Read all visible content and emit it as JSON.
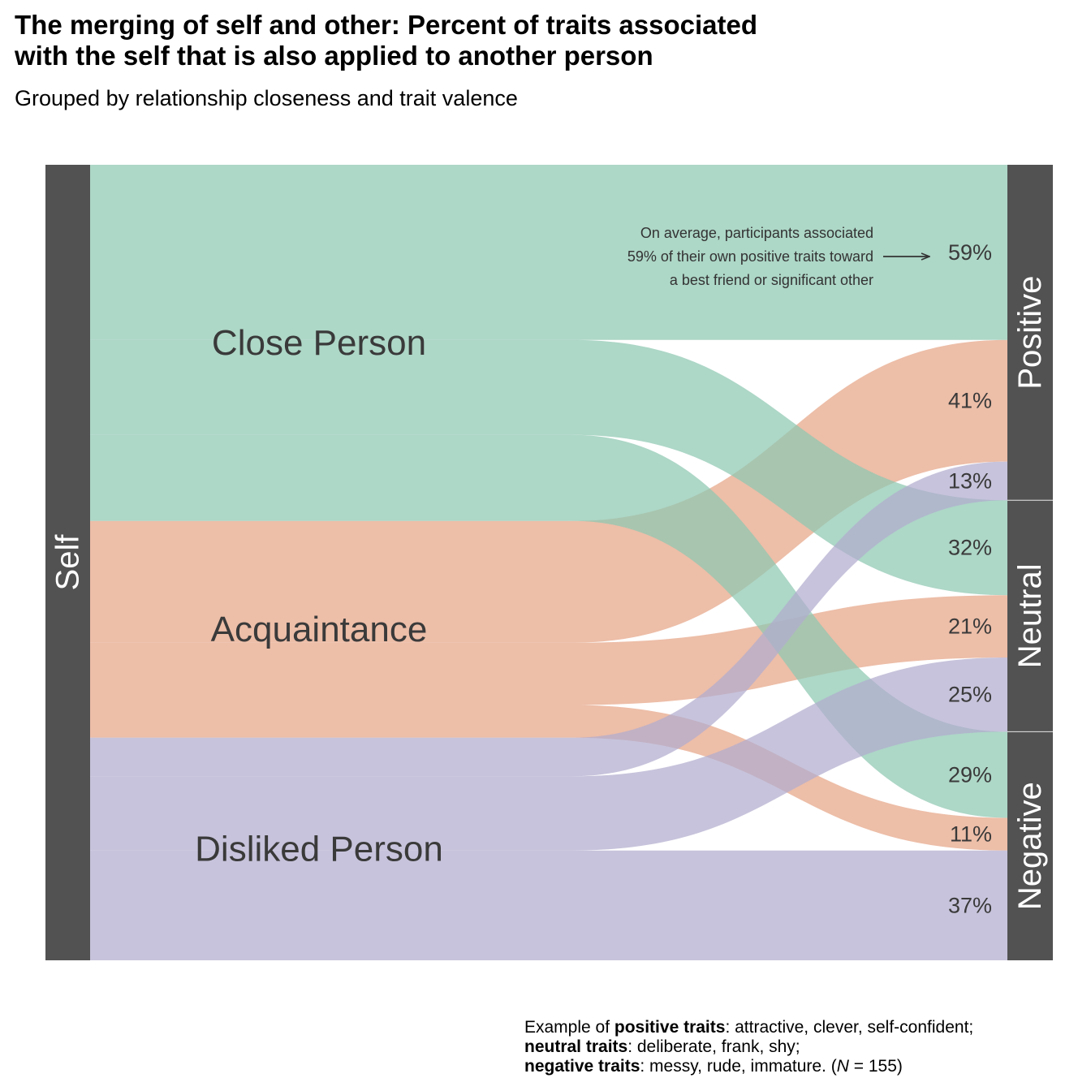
{
  "title": "The merging of self and other: Percent of traits associated\nwith the self that is also applied to another person",
  "subtitle": "Grouped by relationship closeness and trait valence",
  "colors": {
    "close": "#8ec8b2",
    "acquaintance": "#e6a587",
    "disliked": "#b1acce",
    "node": "#525252",
    "node_text": "#ffffff",
    "label_text": "#3a3a3a"
  },
  "chart_data": {
    "type": "sankey",
    "source_node": "Self",
    "groups": [
      {
        "key": "close",
        "name": "Close Person"
      },
      {
        "key": "acquaintance",
        "name": "Acquaintance"
      },
      {
        "key": "disliked",
        "name": "Disliked Person"
      }
    ],
    "valences": [
      "Positive",
      "Neutral",
      "Negative"
    ],
    "flows": [
      {
        "group": "close",
        "valence": "Positive",
        "value": 59,
        "label": "59%"
      },
      {
        "group": "acquaintance",
        "valence": "Positive",
        "value": 41,
        "label": "41%"
      },
      {
        "group": "disliked",
        "valence": "Positive",
        "value": 13,
        "label": "13%"
      },
      {
        "group": "close",
        "valence": "Neutral",
        "value": 32,
        "label": "32%"
      },
      {
        "group": "acquaintance",
        "valence": "Neutral",
        "value": 21,
        "label": "21%"
      },
      {
        "group": "disliked",
        "valence": "Neutral",
        "value": 25,
        "label": "25%"
      },
      {
        "group": "close",
        "valence": "Negative",
        "value": 29,
        "label": "29%"
      },
      {
        "group": "acquaintance",
        "valence": "Negative",
        "value": 11,
        "label": "11%"
      },
      {
        "group": "disliked",
        "valence": "Negative",
        "value": 37,
        "label": "37%"
      }
    ],
    "annotation": {
      "text": "On average, participants associated\n59% of their own positive traits toward\na best friend or significant other",
      "points_to": "59%"
    }
  },
  "caption": {
    "l1_pre": "Example of ",
    "l1_bold": "positive traits",
    "l1_post": ": attractive, clever, self-confident;",
    "l2_bold": "neutral traits",
    "l2_post": ": deliberate, frank, shy;",
    "l3_bold": "negative traits",
    "l3_post": ": messy, rude, immature. (",
    "l3_n": "N",
    "l3_end": " = 155)"
  }
}
